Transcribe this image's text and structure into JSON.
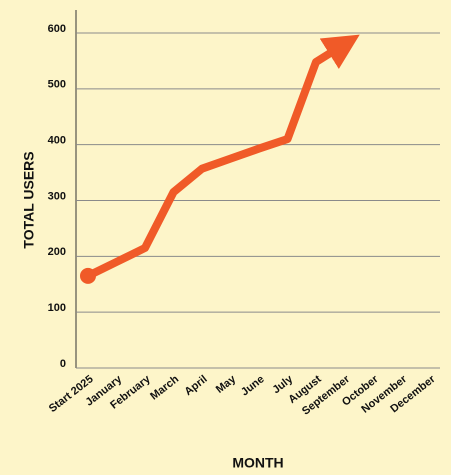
{
  "chart_data": {
    "type": "line",
    "x_label": "MONTH",
    "y_label": "TOTAL USERS",
    "categories": [
      "Start 2025",
      "January",
      "February",
      "March",
      "April",
      "May",
      "June",
      "July",
      "August",
      "September",
      "October",
      "November",
      "December"
    ],
    "values": [
      165,
      190,
      215,
      315,
      357,
      375,
      393,
      410,
      548,
      580,
      null,
      null,
      null
    ],
    "color": "#f05a28",
    "ylim": [
      0,
      600
    ],
    "yticks": [
      0,
      100,
      200,
      300,
      400,
      500,
      600
    ],
    "grid": true
  }
}
